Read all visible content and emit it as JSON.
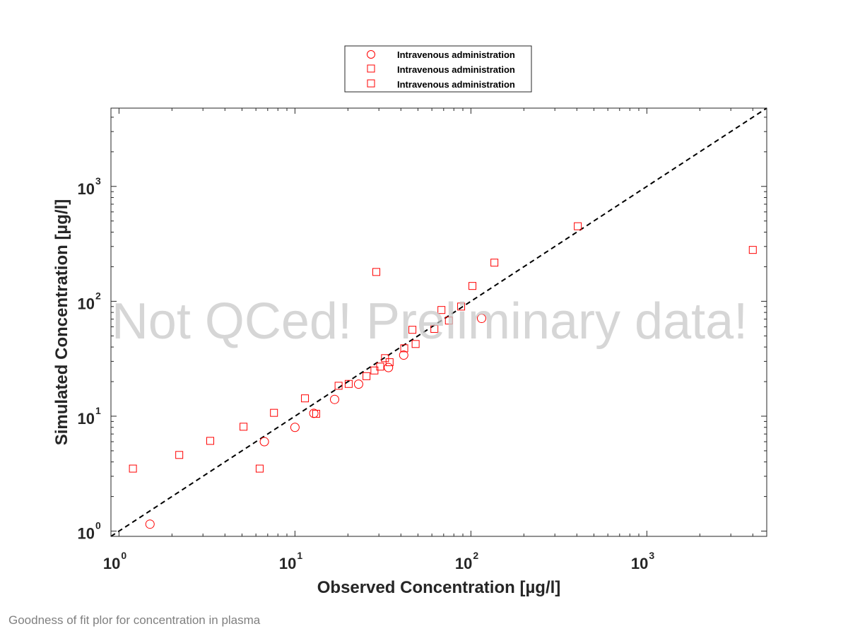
{
  "chart_data": {
    "type": "scatter",
    "title": "",
    "xlabel": "Observed Concentration [µg/l]",
    "ylabel": "Simulated Concentration [µg/l]",
    "xscale": "log",
    "yscale": "log",
    "xlim": [
      0.9,
      4800
    ],
    "ylim": [
      0.9,
      4800
    ],
    "x_ticks": [
      {
        "base": "10",
        "exp": "0",
        "value": 1
      },
      {
        "base": "10",
        "exp": "1",
        "value": 10
      },
      {
        "base": "10",
        "exp": "2",
        "value": 100
      },
      {
        "base": "10",
        "exp": "3",
        "value": 1000
      }
    ],
    "y_ticks": [
      {
        "base": "10",
        "exp": "0",
        "value": 1
      },
      {
        "base": "10",
        "exp": "1",
        "value": 10
      },
      {
        "base": "10",
        "exp": "2",
        "value": 100
      },
      {
        "base": "10",
        "exp": "3",
        "value": 1000
      }
    ],
    "legend_position": "top-center, above plot",
    "identity_line": {
      "style": "dashed",
      "color": "#000000",
      "from": 0.9,
      "to": 4800
    },
    "series": [
      {
        "name": "Intravenous administration",
        "marker": "circle",
        "color": "#ff0000",
        "points": [
          [
            1.5,
            1.15
          ],
          [
            6.7,
            6.0
          ],
          [
            10,
            8.0
          ],
          [
            12.8,
            10.6
          ],
          [
            16.8,
            14.0
          ],
          [
            23,
            19
          ],
          [
            34,
            26.5
          ],
          [
            41.5,
            34
          ],
          [
            115,
            71
          ]
        ]
      },
      {
        "name": "Intravenous administration",
        "marker": "square",
        "color": "#ff0000",
        "points": [
          [
            1.2,
            3.5
          ],
          [
            2.2,
            4.6
          ],
          [
            3.3,
            6.1
          ],
          [
            5.1,
            8.1
          ],
          [
            6.3,
            3.5
          ],
          [
            7.6,
            10.7
          ],
          [
            11.4,
            14.3
          ],
          [
            13.2,
            10.5
          ],
          [
            17.7,
            18.4
          ],
          [
            20.2,
            19.1
          ],
          [
            25.5,
            22.3
          ],
          [
            28.3,
            25
          ],
          [
            30.5,
            27
          ],
          [
            32.5,
            32
          ],
          [
            34.5,
            29.5
          ],
          [
            29,
            180
          ],
          [
            41.8,
            39
          ],
          [
            46.5,
            56.5
          ],
          [
            48.5,
            42.5
          ],
          [
            62,
            57.5
          ],
          [
            68,
            84
          ],
          [
            75,
            68
          ],
          [
            88,
            90
          ],
          [
            102,
            136
          ],
          [
            136,
            217
          ],
          [
            405,
            450
          ],
          [
            4000,
            280
          ]
        ]
      },
      {
        "name": "Intravenous administration",
        "marker": "square",
        "color": "#ff0000",
        "points": []
      }
    ],
    "annotations": [
      {
        "text": "Not QCed! Preliminary data!",
        "kind": "watermark"
      }
    ]
  },
  "caption": "Goodness of fit plor for concentration in plasma"
}
